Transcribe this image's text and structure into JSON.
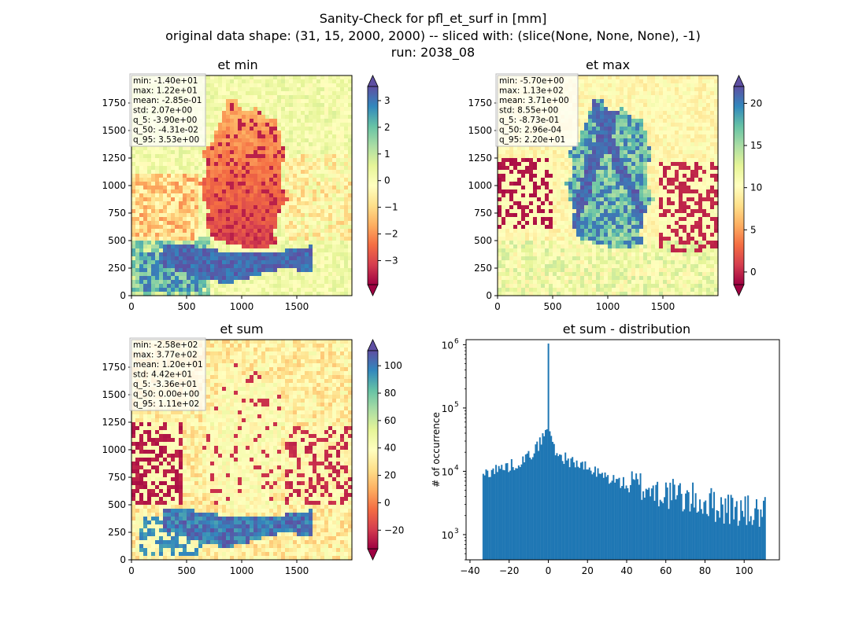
{
  "figure": {
    "title_lines": [
      "Sanity-Check for pfl_et_surf in [mm]",
      "original data shape: (31, 15, 2000, 2000) -- sliced with: (slice(None, None, None), -1)",
      "run: 2038_08"
    ]
  },
  "chart_data": [
    {
      "type": "heatmap",
      "title": "et min",
      "x_ticks": [
        0,
        500,
        1000,
        1500
      ],
      "y_ticks": [
        0,
        250,
        500,
        750,
        1000,
        1250,
        1500,
        1750
      ],
      "xlim": [
        0,
        2000
      ],
      "ylim": [
        0,
        2000
      ],
      "colormap": "Spectral",
      "colorbar": {
        "vmin": -3.9,
        "vmax": 3.53,
        "ticks": [
          -3,
          -2,
          -1,
          0,
          1,
          2,
          3
        ],
        "extend": "both"
      },
      "stats": [
        "min: -1.40e+01",
        "max: 1.22e+01",
        "mean: -2.85e-01",
        "std: 2.07e+00",
        "q_5: -3.90e+00",
        "q_50: -4.31e-02",
        "q_95: 3.53e+00"
      ]
    },
    {
      "type": "heatmap",
      "title": "et max",
      "x_ticks": [
        0,
        500,
        1000,
        1500
      ],
      "y_ticks": [
        0,
        250,
        500,
        750,
        1000,
        1250,
        1500,
        1750
      ],
      "xlim": [
        0,
        2000
      ],
      "ylim": [
        0,
        2000
      ],
      "colormap": "Spectral",
      "colorbar": {
        "vmin": -1.5,
        "vmax": 22.0,
        "ticks": [
          0,
          5,
          10,
          15,
          20
        ],
        "extend": "both"
      },
      "stats": [
        "min: -5.70e+00",
        "max: 1.13e+02",
        "mean: 3.71e+00",
        "std: 8.55e+00",
        "q_5: -8.73e-01",
        "q_50: 2.96e-04",
        "q_95: 2.20e+01"
      ]
    },
    {
      "type": "heatmap",
      "title": "et sum",
      "x_ticks": [
        0,
        500,
        1000,
        1500
      ],
      "y_ticks": [
        0,
        250,
        500,
        750,
        1000,
        1250,
        1500,
        1750
      ],
      "xlim": [
        0,
        2000
      ],
      "ylim": [
        0,
        2000
      ],
      "colormap": "Spectral",
      "colorbar": {
        "vmin": -33.6,
        "vmax": 111,
        "ticks": [
          -20,
          0,
          20,
          40,
          60,
          80,
          100
        ],
        "extend": "both"
      },
      "stats": [
        "min: -2.58e+02",
        "max: 3.77e+02",
        "mean: 1.20e+01",
        "std: 4.42e+01",
        "q_5: -3.36e+01",
        "q_50: 0.00e+00",
        "q_95: 1.11e+02"
      ]
    },
    {
      "type": "bar",
      "title": "et sum - distribution",
      "xlabel": "",
      "ylabel": "# of occurrence",
      "y_scale": "log",
      "xlim": [
        -42,
        118
      ],
      "ylim": [
        400,
        1200000
      ],
      "x_ticks": [
        -40,
        -20,
        0,
        20,
        40,
        60,
        80,
        100
      ],
      "y_ticks": [
        1000,
        10000,
        100000,
        1000000
      ],
      "y_tick_labels": [
        "10^3",
        "10^4",
        "10^5",
        "10^6"
      ],
      "bar_color": "#1f77b4",
      "bins": [
        -33.6,
        111
      ],
      "bin_count": 200,
      "profile_x": [
        -33.6,
        -32,
        -30,
        -25,
        -20,
        -15,
        -10,
        -5,
        -3,
        -1.5,
        -0.3,
        0,
        0.4,
        1.5,
        3,
        5,
        10,
        15,
        20,
        30,
        40,
        50,
        60,
        70,
        80,
        90,
        100,
        111
      ],
      "profile_y": [
        7500,
        9500,
        10000,
        11000,
        12000,
        14000,
        17000,
        26000,
        34000,
        42000,
        55000,
        880000,
        55000,
        33000,
        24000,
        18500,
        15000,
        13000,
        11000,
        8000,
        6200,
        5500,
        4500,
        3800,
        3200,
        2700,
        2300,
        2100
      ]
    }
  ]
}
